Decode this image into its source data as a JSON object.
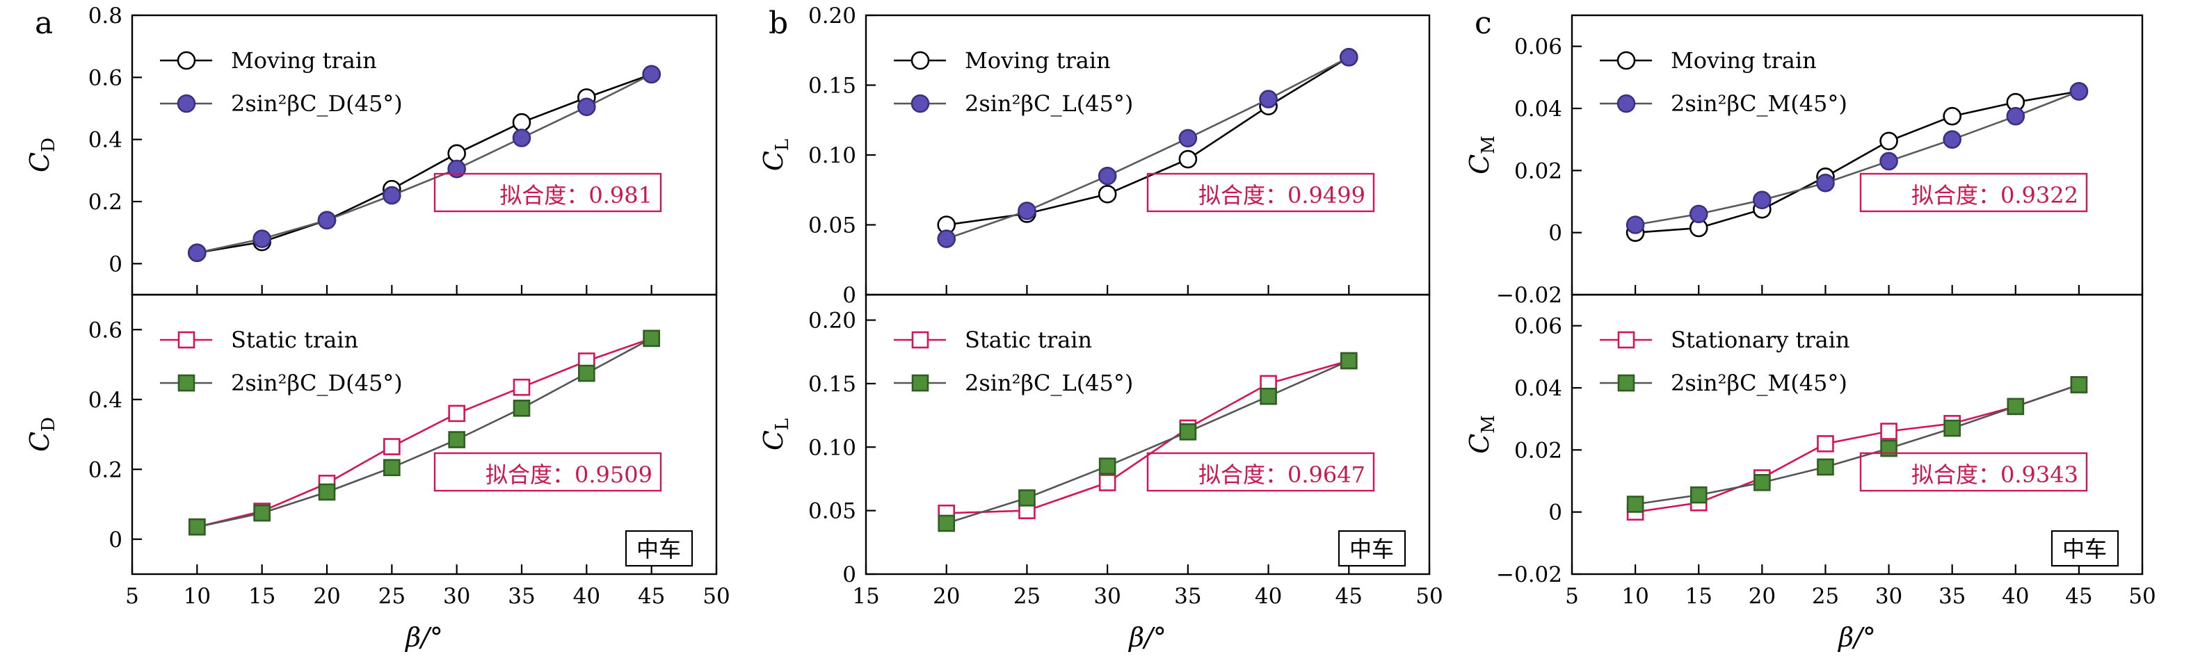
{
  "chart_data": [
    {
      "panel_label": "a",
      "type": "line",
      "xlabel": "β/°",
      "xlim": [
        5,
        50
      ],
      "xticks": [
        "5",
        "10",
        "15",
        "20",
        "25",
        "30",
        "35",
        "40",
        "45",
        "50"
      ],
      "subplots": [
        {
          "position": "top",
          "ylabel": "C",
          "ylabel_sub": "D",
          "ylim": [
            -0.1,
            0.8
          ],
          "yticks": [
            0,
            0.2,
            0.4,
            0.6,
            0.8
          ],
          "ytick_labels": [
            "0",
            "0.2",
            "0.4",
            "0.6",
            "0.8"
          ],
          "fit_text": "拟合度：0.981",
          "series": [
            {
              "name": "Moving train",
              "marker": "open-circle",
              "color": "#000000",
              "x": [
                10,
                15,
                20,
                25,
                30,
                35,
                40,
                45
              ],
              "values": [
                0.035,
                0.07,
                0.14,
                0.24,
                0.355,
                0.455,
                0.535,
                0.61
              ]
            },
            {
              "name": "2sin²βC_D(45°)",
              "marker": "filled-circle",
              "color": "#5b4fb5",
              "x": [
                10,
                15,
                20,
                25,
                30,
                35,
                40,
                45
              ],
              "values": [
                0.035,
                0.08,
                0.14,
                0.22,
                0.305,
                0.405,
                0.505,
                0.61
              ]
            }
          ]
        },
        {
          "position": "bottom",
          "ylabel": "C",
          "ylabel_sub": "D",
          "ylim": [
            -0.1,
            0.7
          ],
          "yticks": [
            0,
            0.2,
            0.4,
            0.6
          ],
          "ytick_labels": [
            "0",
            "0.2",
            "0.4",
            "0.6"
          ],
          "fit_text": "拟合度：0.9509",
          "corner_label": "中车",
          "series": [
            {
              "name": "Static train",
              "marker": "open-square",
              "color": "#d4145a",
              "x": [
                10,
                15,
                20,
                25,
                30,
                35,
                40,
                45
              ],
              "values": [
                0.035,
                0.08,
                0.16,
                0.265,
                0.36,
                0.435,
                0.51,
                0.575
              ]
            },
            {
              "name": "2sin²βC_D(45°)",
              "marker": "filled-square",
              "color": "#4f8f3a",
              "x": [
                10,
                15,
                20,
                25,
                30,
                35,
                40,
                45
              ],
              "values": [
                0.035,
                0.075,
                0.135,
                0.205,
                0.285,
                0.375,
                0.475,
                0.575
              ]
            }
          ]
        }
      ]
    },
    {
      "panel_label": "b",
      "type": "line",
      "xlabel": "β/°",
      "xlim": [
        15,
        50
      ],
      "xticks": [
        "15",
        "20",
        "25",
        "30",
        "35",
        "40",
        "45",
        "50"
      ],
      "subplots": [
        {
          "position": "top",
          "ylabel": "C",
          "ylabel_sub": "L",
          "ylim": [
            0,
            0.2
          ],
          "yticks": [
            0,
            0.05,
            0.1,
            0.15,
            0.2
          ],
          "ytick_labels": [
            "0",
            "0.05",
            "0.10",
            "0.15",
            "0.20"
          ],
          "fit_text": "拟合度：0.9499",
          "series": [
            {
              "name": "Moving train",
              "marker": "open-circle",
              "color": "#000000",
              "x": [
                20,
                25,
                30,
                35,
                40,
                45
              ],
              "values": [
                0.05,
                0.058,
                0.072,
                0.097,
                0.135,
                0.17
              ]
            },
            {
              "name": "2sin²βC_L(45°)",
              "marker": "filled-circle",
              "color": "#5b4fb5",
              "x": [
                20,
                25,
                30,
                35,
                40,
                45
              ],
              "values": [
                0.04,
                0.06,
                0.085,
                0.112,
                0.14,
                0.17
              ]
            }
          ]
        },
        {
          "position": "bottom",
          "ylabel": "C",
          "ylabel_sub": "L",
          "ylim": [
            0,
            0.22
          ],
          "yticks": [
            0,
            0.05,
            0.1,
            0.15,
            0.2
          ],
          "ytick_labels": [
            "0",
            "0.05",
            "0.10",
            "0.15",
            "0.20"
          ],
          "fit_text": "拟合度：0.9647",
          "corner_label": "中车",
          "series": [
            {
              "name": "Static train",
              "marker": "open-square",
              "color": "#d4145a",
              "x": [
                20,
                25,
                30,
                35,
                40,
                45
              ],
              "values": [
                0.048,
                0.05,
                0.072,
                0.115,
                0.15,
                0.168
              ]
            },
            {
              "name": "2sin²βC_L(45°)",
              "marker": "filled-square",
              "color": "#4f8f3a",
              "x": [
                20,
                25,
                30,
                35,
                40,
                45
              ],
              "values": [
                0.04,
                0.06,
                0.085,
                0.112,
                0.14,
                0.168
              ]
            }
          ]
        }
      ]
    },
    {
      "panel_label": "c",
      "type": "line",
      "xlabel": "β/°",
      "xlim": [
        5,
        50
      ],
      "xticks": [
        "5",
        "10",
        "15",
        "20",
        "25",
        "30",
        "35",
        "40",
        "45",
        "50"
      ],
      "subplots": [
        {
          "position": "top",
          "ylabel": "C",
          "ylabel_sub": "M",
          "ylim": [
            -0.02,
            0.07
          ],
          "yticks": [
            -0.02,
            0,
            0.02,
            0.04,
            0.06
          ],
          "ytick_labels": [
            "−0.02",
            "0",
            "0.02",
            "0.04",
            "0.06"
          ],
          "fit_text": "拟合度：0.9322",
          "series": [
            {
              "name": "Moving train",
              "marker": "open-circle",
              "color": "#000000",
              "x": [
                10,
                15,
                20,
                25,
                30,
                35,
                40,
                45
              ],
              "values": [
                0.0,
                0.0015,
                0.0075,
                0.018,
                0.0295,
                0.0375,
                0.042,
                0.0455
              ]
            },
            {
              "name": "2sin²βC_M(45°)",
              "marker": "filled-circle",
              "color": "#5b4fb5",
              "x": [
                10,
                15,
                20,
                25,
                30,
                35,
                40,
                45
              ],
              "values": [
                0.0025,
                0.006,
                0.0105,
                0.016,
                0.023,
                0.03,
                0.0375,
                0.0455
              ]
            }
          ]
        },
        {
          "position": "bottom",
          "ylabel": "C",
          "ylabel_sub": "M",
          "ylim": [
            -0.02,
            0.07
          ],
          "yticks": [
            -0.02,
            0,
            0.02,
            0.04,
            0.06
          ],
          "ytick_labels": [
            "−0.02",
            "0",
            "0.02",
            "0.04",
            "0.06"
          ],
          "fit_text": "拟合度：0.9343",
          "corner_label": "中车",
          "series": [
            {
              "name": "Stationary train",
              "marker": "open-square",
              "color": "#d4145a",
              "x": [
                10,
                15,
                20,
                25,
                30,
                35,
                40,
                45
              ],
              "values": [
                0.0,
                0.003,
                0.011,
                0.022,
                0.026,
                0.0285,
                0.034,
                0.041
              ]
            },
            {
              "name": "2sin²βC_M(45°)",
              "marker": "filled-square",
              "color": "#4f8f3a",
              "x": [
                10,
                15,
                20,
                25,
                30,
                35,
                40,
                45
              ],
              "values": [
                0.0025,
                0.0055,
                0.0095,
                0.0145,
                0.0205,
                0.027,
                0.034,
                0.041
              ]
            }
          ]
        }
      ]
    }
  ]
}
